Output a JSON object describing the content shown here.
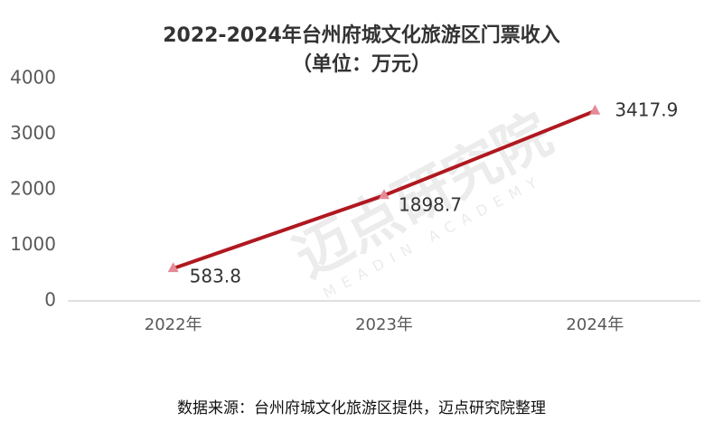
{
  "chart_data": {
    "type": "line",
    "title": "2022-2024年台州府城文化旅游区门票收入",
    "subtitle": "（单位：万元）",
    "categories": [
      "2022年",
      "2023年",
      "2024年"
    ],
    "values": [
      583.8,
      1898.7,
      3417.9
    ],
    "color": "#b01820",
    "marker_color": "#e58a96",
    "ylim": [
      0,
      4000
    ],
    "yticks": [
      0,
      1000,
      2000,
      3000,
      4000
    ],
    "grid": false,
    "watermark": "迈点研究院",
    "watermark_sub": "MEADIN ACADEMY",
    "source": "数据来源：台州府城文化旅游区提供，迈点研究院整理"
  }
}
